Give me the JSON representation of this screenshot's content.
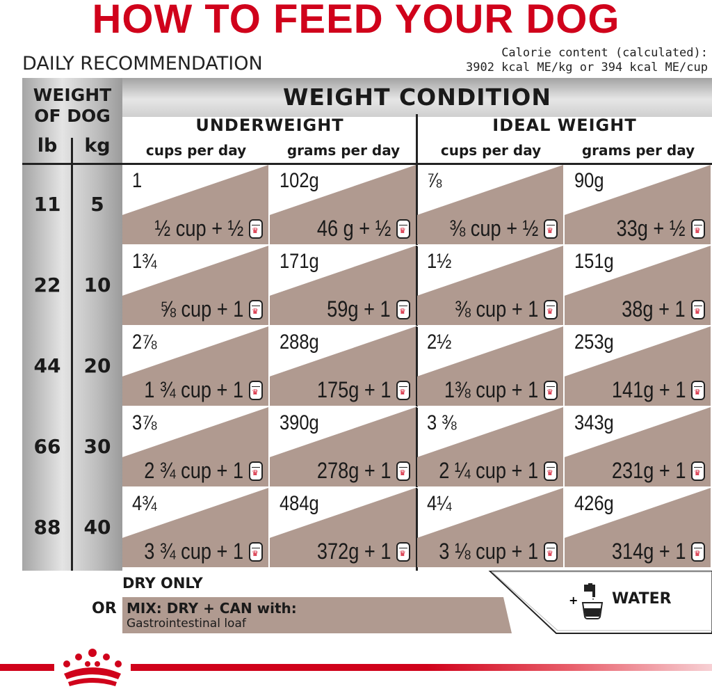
{
  "title": "HOW TO FEED YOUR DOG",
  "daily": "DAILY RECOMMENDATION",
  "calorie": [
    "Calorie content (calculated):",
    "3902 kcal ME/kg or 394 kcal ME/cup"
  ],
  "header": {
    "weight_of_dog": [
      "WEIGHT",
      "OF DOG"
    ],
    "lb": "lb",
    "kg": "kg",
    "weight_condition": "WEIGHT CONDITION",
    "underweight": "UNDERWEIGHT",
    "ideal_weight": "IDEAL WEIGHT",
    "sub_cols": [
      "cups per day",
      "grams per day",
      "cups per day",
      "grams per day"
    ]
  },
  "rows": [
    {
      "lb": "11",
      "kg": "5",
      "cells": [
        {
          "top": "1",
          "bottom": "½ cup + ½"
        },
        {
          "top": "102g",
          "bottom": "46 g + ½"
        },
        {
          "top": "⅞",
          "bottom": "⅜ cup + ½"
        },
        {
          "top": "90g",
          "bottom": "33g + ½"
        }
      ]
    },
    {
      "lb": "22",
      "kg": "10",
      "cells": [
        {
          "top": "1¾",
          "bottom": "⅝ cup + 1"
        },
        {
          "top": "171g",
          "bottom": "59g + 1"
        },
        {
          "top": "1½",
          "bottom": "⅜ cup + 1"
        },
        {
          "top": "151g",
          "bottom": "38g + 1"
        }
      ]
    },
    {
      "lb": "44",
      "kg": "20",
      "cells": [
        {
          "top": "2⅞",
          "bottom": "1 ¾ cup + 1"
        },
        {
          "top": "288g",
          "bottom": "175g + 1"
        },
        {
          "top": "2½",
          "bottom": "1⅜ cup + 1"
        },
        {
          "top": "253g",
          "bottom": "141g + 1"
        }
      ]
    },
    {
      "lb": "66",
      "kg": "30",
      "cells": [
        {
          "top": "3⅞",
          "bottom": "2 ¾ cup + 1"
        },
        {
          "top": "390g",
          "bottom": "278g + 1"
        },
        {
          "top": "3 ⅜",
          "bottom": "2 ¼ cup + 1"
        },
        {
          "top": "343g",
          "bottom": "231g + 1"
        }
      ]
    },
    {
      "lb": "88",
      "kg": "40",
      "cells": [
        {
          "top": "4¾",
          "bottom": "3 ¾ cup + 1"
        },
        {
          "top": "484g",
          "bottom": "372g + 1"
        },
        {
          "top": "4¼",
          "bottom": "3 ⅛ cup + 1"
        },
        {
          "top": "426g",
          "bottom": "314g + 1"
        }
      ]
    }
  ],
  "legend": {
    "dry_only": "DRY ONLY",
    "or": "OR",
    "mix_line1": "MIX: DRY + CAN with:",
    "mix_line2": "Gastrointestinal loaf",
    "water": "WATER"
  },
  "colors": {
    "brand_red": "#d0021b",
    "mix_tan": "#b09a90",
    "grey": "#bdbdbd"
  },
  "icons": [
    "can-icon",
    "water-tap-icon",
    "royal-canin-crown-logo"
  ]
}
